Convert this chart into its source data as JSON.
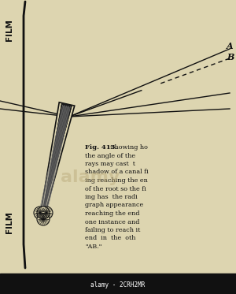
{
  "bg_color": "#ddd5b0",
  "line_color": "#111111",
  "fig_width": 3.0,
  "fig_height": 3.73,
  "film_label_top": "FILM",
  "film_label_bottom": "FILM",
  "label_A": "A",
  "label_B": "B",
  "bottom_bar_color": "#111111",
  "bottom_bar_text": "alamy - 2CRH2MR",
  "watermark_color": "#b8a878",
  "fig_num": "Fig. 413.",
  "caption_lines": [
    "Showing ho",
    "the angle of the",
    "rays may cast  t",
    "shadow of a canal fi",
    "ing reaching the en",
    "of the root so the fi",
    "ing has  the radi",
    "graph appearance",
    "reaching the end",
    "one instance and",
    "failing to reach it",
    "end  in  the  oth",
    "\"AB.\""
  ]
}
